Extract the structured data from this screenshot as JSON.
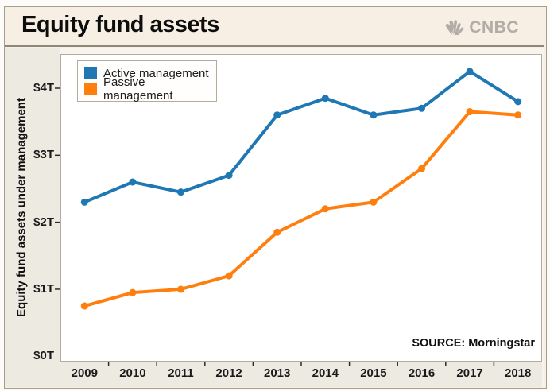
{
  "header": {
    "title": "Equity fund assets",
    "logo_text": "CNBC",
    "logo_color": "#b3aca6"
  },
  "source_note": "SOURCE: Morningstar",
  "colors": {
    "active": "#1f77b4",
    "passive": "#ff7f0e",
    "header_background": "#f7efe3",
    "axis_strip_background": "#edeae2",
    "plot_background": "#ffffff",
    "tick_text": "#1a1a1a"
  },
  "chart_data": {
    "type": "line",
    "title": "Equity fund assets",
    "categories": [
      "2009",
      "2010",
      "2011",
      "2012",
      "2013",
      "2014",
      "2015",
      "2016",
      "2017",
      "2018"
    ],
    "series": [
      {
        "name": "Active management",
        "color": "#1f77b4",
        "values": [
          2.3,
          2.6,
          2.45,
          2.7,
          3.6,
          3.85,
          3.6,
          3.7,
          4.25,
          3.8
        ]
      },
      {
        "name": "Passive management",
        "color": "#ff7f0e",
        "values": [
          0.75,
          0.95,
          1.0,
          1.2,
          1.85,
          2.2,
          2.3,
          2.8,
          3.65,
          3.6
        ]
      }
    ],
    "xlabel": "",
    "ylabel": "Equity fund assets under management",
    "y_ticks": [
      0,
      1,
      2,
      3,
      4
    ],
    "y_tick_labels": [
      "$0T",
      "$1T",
      "$2T",
      "$3T",
      "$4T"
    ],
    "ylim": [
      -0.08,
      4.51
    ],
    "unit": "trillion USD",
    "grid": false,
    "legend_position": "upper-left",
    "source": "SOURCE: Morningstar"
  }
}
